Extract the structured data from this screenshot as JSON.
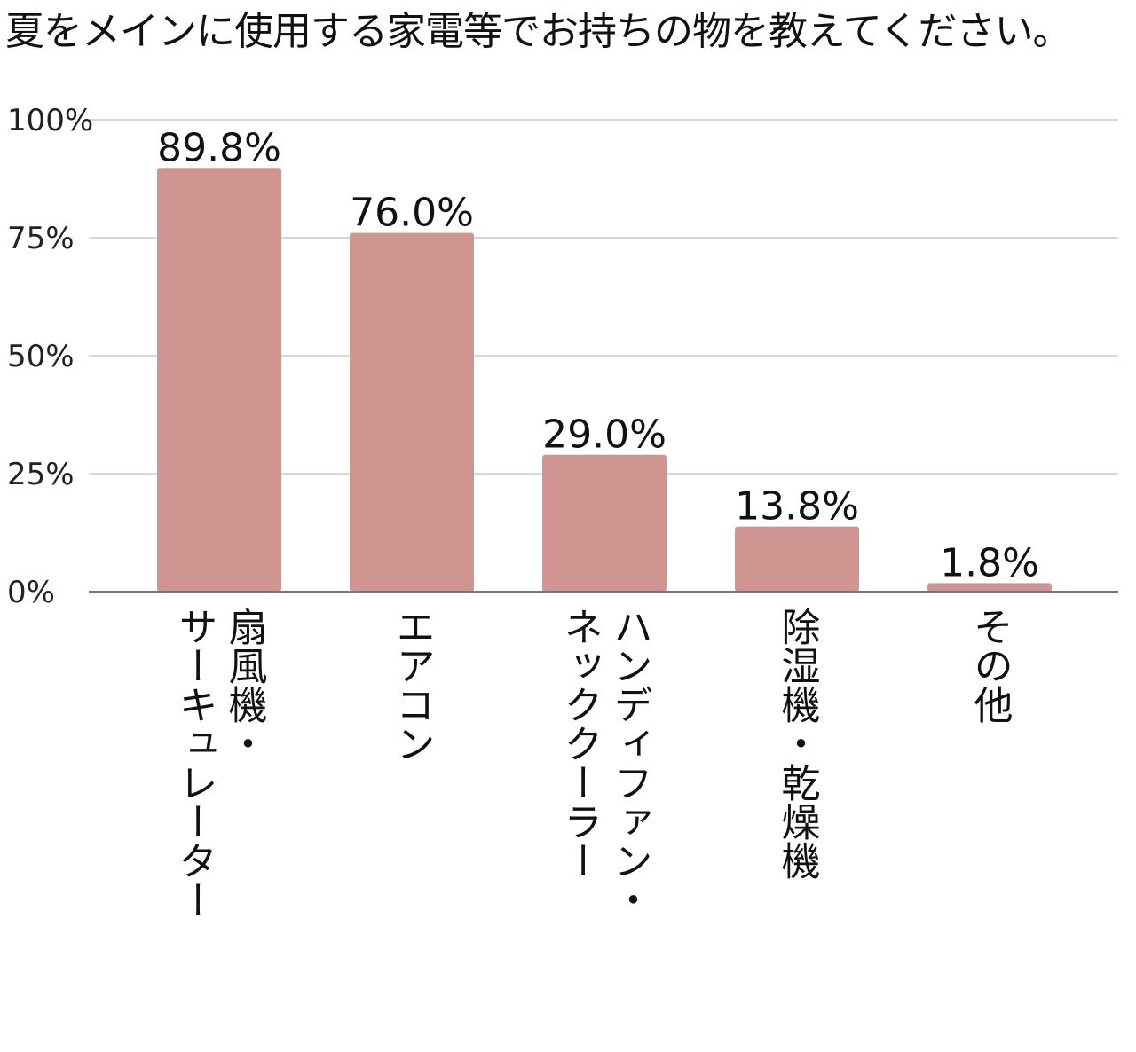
{
  "chart_data": {
    "type": "bar",
    "title": "夏をメインに使用する家電等でお持ちの物を教えてください。",
    "categories": [
      [
        "扇風機・",
        "サーキュレーター"
      ],
      [
        "エアコン"
      ],
      [
        "ハンディファン・",
        "ネッククーラー"
      ],
      [
        "除湿機・乾燥機"
      ],
      [
        "その他"
      ]
    ],
    "values": [
      89.8,
      76.0,
      29.0,
      13.8,
      1.8
    ],
    "data_labels": [
      "89.8%",
      "76.0%",
      "29.0%",
      "13.8%",
      "1.8%"
    ],
    "y_ticks": [
      {
        "value": 0,
        "label": "0%"
      },
      {
        "value": 25,
        "label": "25%"
      },
      {
        "value": 50,
        "label": "50%"
      },
      {
        "value": 75,
        "label": "75%"
      },
      {
        "value": 100,
        "label": "100%"
      }
    ],
    "ylim": [
      0,
      100
    ],
    "xlabel": "",
    "ylabel": "",
    "grid": true,
    "legend": "none",
    "colors": {
      "bar": "#d09590",
      "grid": "#d9d9d9",
      "axis": "#777777"
    }
  }
}
